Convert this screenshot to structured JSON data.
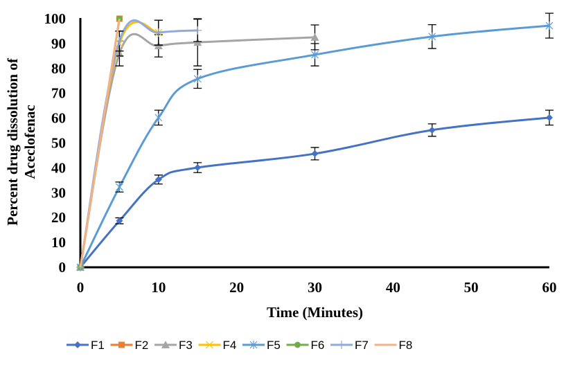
{
  "chart_data": {
    "type": "line",
    "title": "",
    "xlabel": "Time (Minutes)",
    "ylabel_lines": [
      "Percent  drug dissolution of",
      "Aceclofenac"
    ],
    "xlim": [
      0,
      60
    ],
    "ylim": [
      0,
      100
    ],
    "xticks": [
      0,
      10,
      20,
      30,
      40,
      50,
      60
    ],
    "yticks": [
      0,
      10,
      20,
      30,
      40,
      50,
      60,
      70,
      80,
      90,
      100
    ],
    "grid": false,
    "legend_position": "bottom",
    "smooth": true,
    "series": [
      {
        "name": "F1",
        "color": "#4472C4",
        "marker": "diamond",
        "x": [
          0,
          5,
          10,
          15,
          30,
          45,
          60
        ],
        "y": [
          0,
          18.7,
          35.3,
          40.1,
          45.7,
          55.2,
          60.2
        ],
        "err": [
          0,
          1.2,
          1.8,
          2.0,
          2.5,
          2.5,
          3.0
        ]
      },
      {
        "name": "F2",
        "color": "#ED7D31",
        "marker": "square",
        "x": [
          0,
          5
        ],
        "y": [
          0,
          100
        ],
        "err": [
          0,
          0
        ]
      },
      {
        "name": "F3",
        "color": "#A5A5A5",
        "marker": "triangle",
        "x": [
          0,
          5,
          10,
          15,
          30
        ],
        "y": [
          0,
          86,
          89.1,
          90.5,
          92.5
        ],
        "err": [
          0,
          5,
          4.5,
          9.5,
          5
        ]
      },
      {
        "name": "F4",
        "color": "#FFC000",
        "marker": "x",
        "x": [
          0,
          5,
          10
        ],
        "y": [
          0,
          90,
          94.4
        ],
        "err": [
          0,
          5,
          5
        ]
      },
      {
        "name": "F5",
        "color": "#5B9BD5",
        "marker": "star",
        "x": [
          0,
          5,
          10,
          15,
          30,
          45,
          60
        ],
        "y": [
          0,
          32.3,
          60.2,
          75.8,
          85.5,
          92.8,
          97.2
        ],
        "err": [
          0,
          2,
          3,
          3.8,
          4.5,
          4.8,
          5
        ]
      },
      {
        "name": "F6",
        "color": "#70AD47",
        "marker": "circle",
        "x": [
          0,
          5
        ],
        "y": [
          0,
          100
        ],
        "err": [
          0,
          0
        ]
      },
      {
        "name": "F7",
        "color": "#8FAADC",
        "marker": "plus",
        "x": [
          0,
          5,
          10,
          15
        ],
        "y": [
          0,
          91,
          94.4,
          95.3
        ],
        "err": [
          0,
          4,
          5,
          4.5
        ]
      },
      {
        "name": "F8",
        "color": "#F4B183",
        "marker": "none",
        "x": [
          0,
          5
        ],
        "y": [
          0,
          100
        ],
        "err": [
          0,
          0
        ]
      }
    ]
  }
}
